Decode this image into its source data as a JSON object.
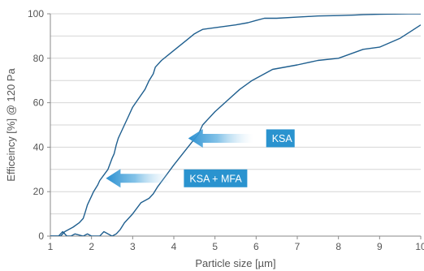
{
  "chart_data": {
    "type": "line",
    "title": "",
    "xlabel": "Particle size [µm]",
    "ylabel": "Efficeincy [%] @ 120 Pa",
    "xlim": [
      1,
      10
    ],
    "ylim": [
      0,
      100
    ],
    "x_ticks": [
      "1",
      "2",
      "3",
      "4",
      "5",
      "6",
      "7",
      "8",
      "9",
      "10"
    ],
    "y_ticks": [
      "0",
      "20",
      "40",
      "60",
      "80",
      "100"
    ],
    "grid": "horizontal",
    "line_color": "#1f5f8f",
    "callout_color": "#2a93cf",
    "series": [
      {
        "name": "KSA + MFA",
        "x": [
          1.0,
          1.25,
          1.35,
          1.55,
          1.7,
          1.8,
          1.85,
          1.9,
          1.95,
          2.0,
          2.05,
          2.15,
          2.2,
          2.4,
          2.5,
          2.55,
          2.6,
          2.65,
          2.7,
          2.8,
          2.9,
          3.0,
          3.15,
          3.3,
          3.4,
          3.5,
          3.55,
          3.7,
          3.9,
          4.1,
          4.3,
          4.5,
          4.6,
          4.7,
          5.1,
          5.5,
          5.8,
          6.0,
          6.2,
          6.5,
          7.0,
          7.5,
          8.0,
          8.4,
          8.6,
          9.0,
          9.7,
          10.0
        ],
        "y": [
          0,
          0,
          2,
          4,
          6,
          8,
          11,
          14,
          16,
          18,
          20,
          23,
          25,
          30,
          35,
          37,
          41,
          44,
          46,
          50,
          54,
          58,
          62,
          66,
          70,
          73,
          76,
          79,
          82,
          85,
          88,
          91,
          92,
          93,
          94,
          95,
          96,
          97,
          98,
          98,
          98.5,
          99,
          99.2,
          99.4,
          99.6,
          99.8,
          100,
          100
        ]
      },
      {
        "name": "KSA",
        "x": [
          1.0,
          1.2,
          1.3,
          1.4,
          1.5,
          1.6,
          1.8,
          1.9,
          2.0,
          2.2,
          2.3,
          2.5,
          2.6,
          2.7,
          2.8,
          3.0,
          3.2,
          3.4,
          3.5,
          3.6,
          3.8,
          4.0,
          4.3,
          4.6,
          4.7,
          5.0,
          5.3,
          5.6,
          5.9,
          6.2,
          6.4,
          7.0,
          7.5,
          8.0,
          8.3,
          8.6,
          9.0,
          9.5,
          10.0
        ],
        "y": [
          0,
          0,
          2,
          0,
          0,
          1,
          0,
          1,
          0,
          0,
          2,
          0,
          1,
          3,
          6,
          10,
          15,
          17,
          19,
          22,
          27,
          32,
          39,
          46,
          50,
          56,
          61,
          66,
          70,
          73,
          75,
          77,
          79,
          80,
          82,
          84,
          85,
          89,
          95
        ]
      }
    ],
    "annotations": [
      {
        "label": "KSA",
        "target_x": 4.35,
        "target_y": 44
      },
      {
        "label": "KSA + MFA",
        "target_x": 2.35,
        "target_y": 26
      }
    ]
  }
}
